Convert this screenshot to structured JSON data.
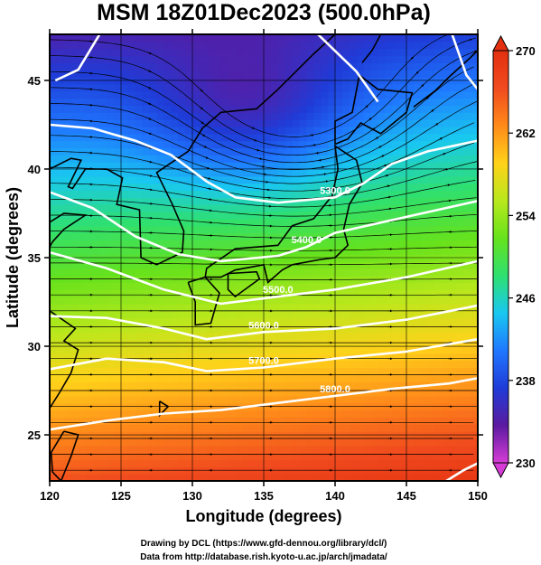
{
  "chart_data": {
    "type": "heatmap",
    "title": "MSM 18Z01Dec2023 (500.0hPa)",
    "xlabel": "Longitude (degrees)",
    "ylabel": "Latitude  (degrees)",
    "xlim": [
      120,
      150
    ],
    "ylim": [
      22.4,
      47.6
    ],
    "x_ticks": [
      "120",
      "125",
      "130",
      "135",
      "140",
      "145",
      "150"
    ],
    "y_ticks": [
      "25",
      "30",
      "35",
      "40",
      "45"
    ],
    "x_tick_values": [
      120,
      125,
      130,
      135,
      140,
      145,
      150
    ],
    "y_tick_values": [
      25,
      30,
      35,
      40,
      45
    ],
    "grid": true,
    "colorbar": {
      "range": [
        230,
        270
      ],
      "ticks": [
        "230",
        "238",
        "246",
        "254",
        "262",
        "270"
      ],
      "tick_values": [
        230,
        238,
        246,
        254,
        262,
        270
      ],
      "placement": "right",
      "colormap": [
        "#d63cd6",
        "#5a1aa0",
        "#1f3cd8",
        "#1f78ff",
        "#19c8f0",
        "#2fe070",
        "#66e21c",
        "#b8e81c",
        "#ffd21a",
        "#ff8a1a",
        "#f04a1e",
        "#e33010"
      ]
    },
    "contours": {
      "color": "#ffffff",
      "lines": [
        {
          "value": "5300.0",
          "points": [
            [
              120,
              42.5
            ],
            [
              123,
              42.3
            ],
            [
              126,
              41.6
            ],
            [
              128.5,
              40.8
            ],
            [
              131,
              39.3
            ],
            [
              133,
              38.4
            ],
            [
              136,
              38.1
            ],
            [
              140,
              38.4
            ],
            [
              142,
              39.2
            ],
            [
              144,
              40.3
            ],
            [
              146.5,
              41.0
            ],
            [
              150,
              41.6
            ]
          ]
        },
        {
          "value": "5400.0",
          "points": [
            [
              120,
              38.7
            ],
            [
              123,
              37.8
            ],
            [
              126,
              36.2
            ],
            [
              129,
              35.2
            ],
            [
              132,
              34.8
            ],
            [
              136,
              35.1
            ],
            [
              138,
              35.6
            ],
            [
              140,
              36.4
            ],
            [
              145,
              37.3
            ],
            [
              150,
              38.2
            ]
          ]
        },
        {
          "value": "5500.0",
          "points": [
            [
              120,
              35.3
            ],
            [
              124,
              34.4
            ],
            [
              128,
              33.2
            ],
            [
              132,
              32.4
            ],
            [
              136,
              32.8
            ],
            [
              140,
              33.2
            ],
            [
              145,
              33.9
            ],
            [
              150,
              34.8
            ]
          ]
        },
        {
          "value": "5600.0",
          "points": [
            [
              120,
              31.7
            ],
            [
              124,
              31.6
            ],
            [
              128,
              31.0
            ],
            [
              131,
              30.4
            ],
            [
              135,
              30.8
            ],
            [
              140,
              31.0
            ],
            [
              145,
              31.5
            ],
            [
              150,
              32.3
            ]
          ]
        },
        {
          "value": "5700.0",
          "points": [
            [
              120,
              28.7
            ],
            [
              124,
              29.3
            ],
            [
              128,
              29.1
            ],
            [
              131,
              28.6
            ],
            [
              135,
              28.8
            ],
            [
              140,
              29.3
            ],
            [
              145,
              29.7
            ],
            [
              150,
              30.4
            ]
          ]
        },
        {
          "value": "5800.0",
          "points": [
            [
              120,
              25.3
            ],
            [
              124,
              25.8
            ],
            [
              128,
              26.2
            ],
            [
              132,
              26.4
            ],
            [
              136,
              26.8
            ],
            [
              140,
              27.2
            ],
            [
              144,
              27.6
            ],
            [
              148,
              27.9
            ],
            [
              150,
              28.2
            ]
          ]
        },
        {
          "value": "",
          "points": [
            [
              120.4,
              45.0
            ],
            [
              122,
              45.6
            ],
            [
              123.5,
              47.6
            ]
          ]
        },
        {
          "value": "",
          "points": [
            [
              138.8,
              47.6
            ],
            [
              141.5,
              45.5
            ],
            [
              143,
              43.8
            ]
          ]
        },
        {
          "value": "",
          "points": [
            [
              148.2,
              47.6
            ],
            [
              149.2,
              45.3
            ],
            [
              150,
              44.5
            ]
          ]
        },
        {
          "value": "",
          "points": [
            [
              147.8,
              22.4
            ],
            [
              149,
              23.0
            ],
            [
              150,
              23.4
            ]
          ]
        }
      ]
    },
    "annotations": [
      "5300.0",
      "5400.0",
      "5500.0",
      "5600.0",
      "5700.0",
      "5800.0"
    ]
  },
  "credits": {
    "line1": "Drawing by DCL (https://www.gfd-dennou.org/library/dcl/)",
    "line2": "Data from http://database.rish.kyoto-u.ac.jp/arch/jmadata/"
  }
}
